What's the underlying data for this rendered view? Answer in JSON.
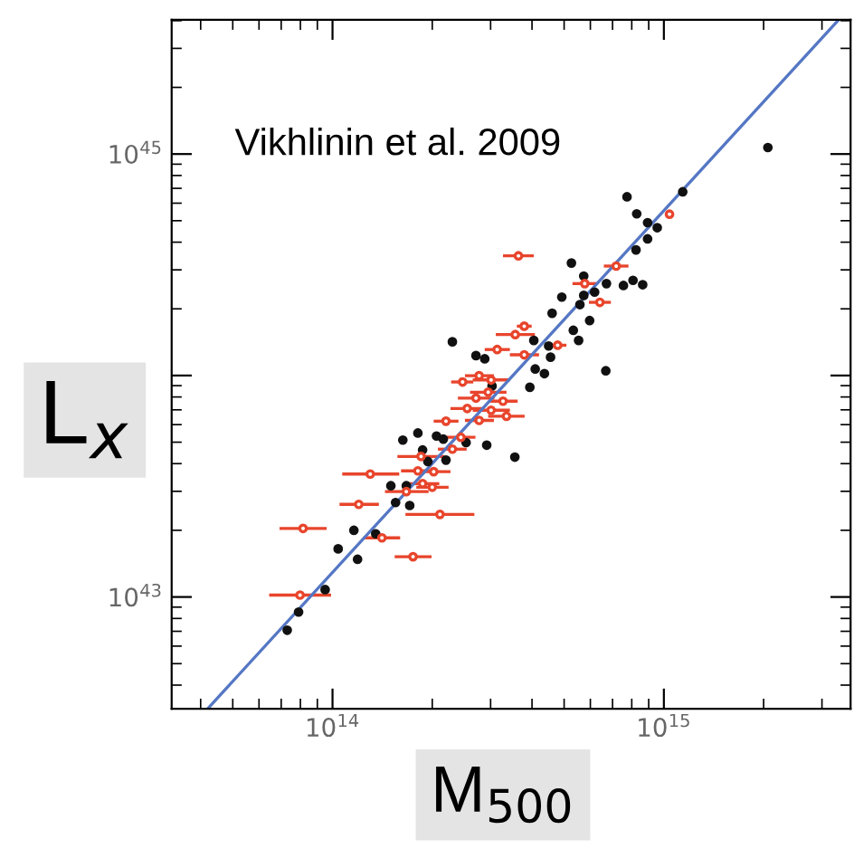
{
  "chart_data": {
    "type": "scatter",
    "xlabel": "M$_{500}$",
    "ylabel": "L$_{x}$",
    "log": "xy",
    "marker": "circle",
    "grid": false,
    "legend": false,
    "annotations": [
      "Vikhlinin et al. 2009"
    ],
    "xlim": [
      32700000000000.0,
      3660000000000000.0
    ],
    "ylim": [
      3.13e+42,
      4.04e+45
    ],
    "xticks": [
      {
        "value": 100000000000000.0,
        "label": "10$^{14}$"
      },
      {
        "value": 1000000000000000.0,
        "label": "10$^{15}$"
      }
    ],
    "yticks": [
      {
        "value": 1e+43,
        "label": "10$^{43}$"
      },
      {
        "value": 1e+44,
        "label": null
      },
      {
        "value": 1e+45,
        "label": "10$^{45}$"
      }
    ],
    "series": [
      {
        "color": "#111111",
        "x": [
          2060000000000000.0,
          774000000000000.0,
          1140000000000000.0,
          828000000000000.0,
          893000000000000.0,
          955000000000000.0,
          893000000000000.0,
          824000000000000.0,
          526000000000000.0,
          573000000000000.0,
          671000000000000.0,
          807000000000000.0,
          863000000000000.0,
          755000000000000.0,
          492000000000000.0,
          618000000000000.0,
          573000000000000.0,
          558000000000000.0,
          460000000000000.0,
          597000000000000.0,
          533000000000000.0,
          553000000000000.0,
          405000000000000.0,
          230000000000000.0,
          271000000000000.0,
          288000000000000.0,
          449000000000000.0,
          455000000000000.0,
          668000000000000.0,
          409000000000000.0,
          436000000000000.0,
          303000000000000.0,
          394000000000000.0,
          292000000000000.0,
          355000000000000.0,
          163000000000000.0,
          181000000000000.0,
          206000000000000.0,
          216000000000000.0,
          253000000000000.0,
          187000000000000.0,
          194000000000000.0,
          220000000000000.0,
          150000000000000.0,
          167000000000000.0,
          155000000000000.0,
          171000000000000.0,
          116000000000000.0,
          135000000000000.0,
          104000000000000.0,
          119000000000000.0,
          95000000000000.0,
          79000000000000.0,
          73000000000000.0
        ],
        "values": [
          1.07e+45,
          6.41e+44,
          6.75e+44,
          5.37e+44,
          4.9e+44,
          4.65e+44,
          4.14e+44,
          3.69e+44,
          3.22e+44,
          2.81e+44,
          2.6e+44,
          2.69e+44,
          2.57e+44,
          2.55e+44,
          2.26e+44,
          2.38e+44,
          2.3e+44,
          2.09e+44,
          1.91e+44,
          1.77e+44,
          1.6e+44,
          1.44e+44,
          1.44e+44,
          1.42e+44,
          1.23e+44,
          1.19e+44,
          1.36e+44,
          1.21e+44,
          1.05e+44,
          1.07e+44,
          1.02e+44,
          8.97e+43,
          8.85e+43,
          4.85e+43,
          4.28e+43,
          5.11e+43,
          5.5e+43,
          5.33e+43,
          5.16e+43,
          4.98e+43,
          4.61e+43,
          4.09e+43,
          4.15e+43,
          3.18e+43,
          3.18e+43,
          2.67e+43,
          2.59e+43,
          2e+43,
          1.93e+43,
          1.65e+43,
          1.48e+43,
          1.08e+43,
          8.55e+42,
          7.08e+42
        ]
      },
      {
        "color": "#e8452c",
        "x": [
          364000000000000.0,
          1040000000000000.0,
          718000000000000.0,
          577000000000000.0,
          641000000000000.0,
          379000000000000.0,
          356000000000000.0,
          379000000000000.0,
          478000000000000.0,
          314000000000000.0,
          277000000000000.0,
          247000000000000.0,
          301000000000000.0,
          295000000000000.0,
          271000000000000.0,
          327000000000000.0,
          255000000000000.0,
          301000000000000.0,
          335000000000000.0,
          220000000000000.0,
          277000000000000.0,
          244000000000000.0,
          230000000000000.0,
          185000000000000.0,
          181000000000000.0,
          202000000000000.0,
          130000000000000.0,
          187000000000000.0,
          200000000000000.0,
          167000000000000.0,
          120000000000000.0,
          211000000000000.0,
          81500000000000.0,
          141000000000000.0,
          175000000000000.0,
          79800000000000.0
        ],
        "values": [
          3.47e+44,
          5.35e+44,
          3.12e+44,
          2.6e+44,
          2.14e+44,
          1.67e+44,
          1.53e+44,
          1.24e+44,
          1.37e+44,
          1.31e+44,
          9.98e+43,
          9.35e+43,
          9.55e+43,
          8.41e+43,
          7.91e+43,
          7.66e+43,
          7.1e+43,
          6.97e+43,
          6.55e+43,
          6.22e+43,
          6.27e+43,
          5.26e+43,
          4.65e+43,
          4.31e+43,
          3.71e+43,
          3.68e+43,
          3.59e+43,
          3.25e+43,
          3.13e+43,
          2.99e+43,
          2.62e+43,
          2.36e+43,
          2.04e+43,
          1.85e+43,
          1.52e+43,
          1.02e+43
        ],
        "xerrors": [
          [
            327000000000000.0,
            405000000000000.0
          ],
          null,
          [
            659000000000000.0,
            782000000000000.0
          ],
          [
            530000000000000.0,
            628000000000000.0
          ],
          [
            594000000000000.0,
            692000000000000.0
          ],
          [
            360000000000000.0,
            399000000000000.0
          ],
          [
            311000000000000.0,
            408000000000000.0
          ],
          [
            343000000000000.0,
            420000000000000.0
          ],
          [
            449000000000000.0,
            508000000000000.0
          ],
          [
            288000000000000.0,
            343000000000000.0
          ],
          [
            251000000000000.0,
            307000000000000.0
          ],
          [
            228000000000000.0,
            266000000000000.0
          ],
          [
            265000000000000.0,
            343000000000000.0
          ],
          [
            260000000000000.0,
            335000000000000.0
          ],
          [
            239000000000000.0,
            308000000000000.0
          ],
          [
            296000000000000.0,
            362000000000000.0
          ],
          [
            227000000000000.0,
            285000000000000.0
          ],
          [
            265000000000000.0,
            343000000000000.0
          ],
          [
            295000000000000.0,
            380000000000000.0
          ],
          [
            202000000000000.0,
            240000000000000.0
          ],
          [
            251000000000000.0,
            307000000000000.0
          ],
          [
            221000000000000.0,
            270000000000000.0
          ],
          [
            208000000000000.0,
            254000000000000.0
          ],
          [
            157000000000000.0,
            218000000000000.0
          ],
          [
            161000000000000.0,
            202000000000000.0
          ],
          [
            181000000000000.0,
            227000000000000.0
          ],
          [
            107000000000000.0,
            159000000000000.0
          ],
          [
            167000000000000.0,
            210000000000000.0
          ],
          [
            179000000000000.0,
            224000000000000.0
          ],
          [
            144000000000000.0,
            195000000000000.0
          ],
          [
            105000000000000.0,
            138000000000000.0
          ],
          [
            166000000000000.0,
            268000000000000.0
          ],
          [
            69200000000000.0,
            96000000000000.0
          ],
          [
            124000000000000.0,
            160000000000000.0
          ],
          [
            154000000000000.0,
            199000000000000.0
          ],
          [
            64400000000000.0,
            99000000000000.0
          ]
        ]
      },
      {
        "type": "line",
        "color": "#5577c4",
        "marker": "none",
        "x": [
          42000000000000.0,
          3350000000000000.0
        ],
        "values": [
          3.13e+42,
          4e+45
        ]
      }
    ]
  }
}
